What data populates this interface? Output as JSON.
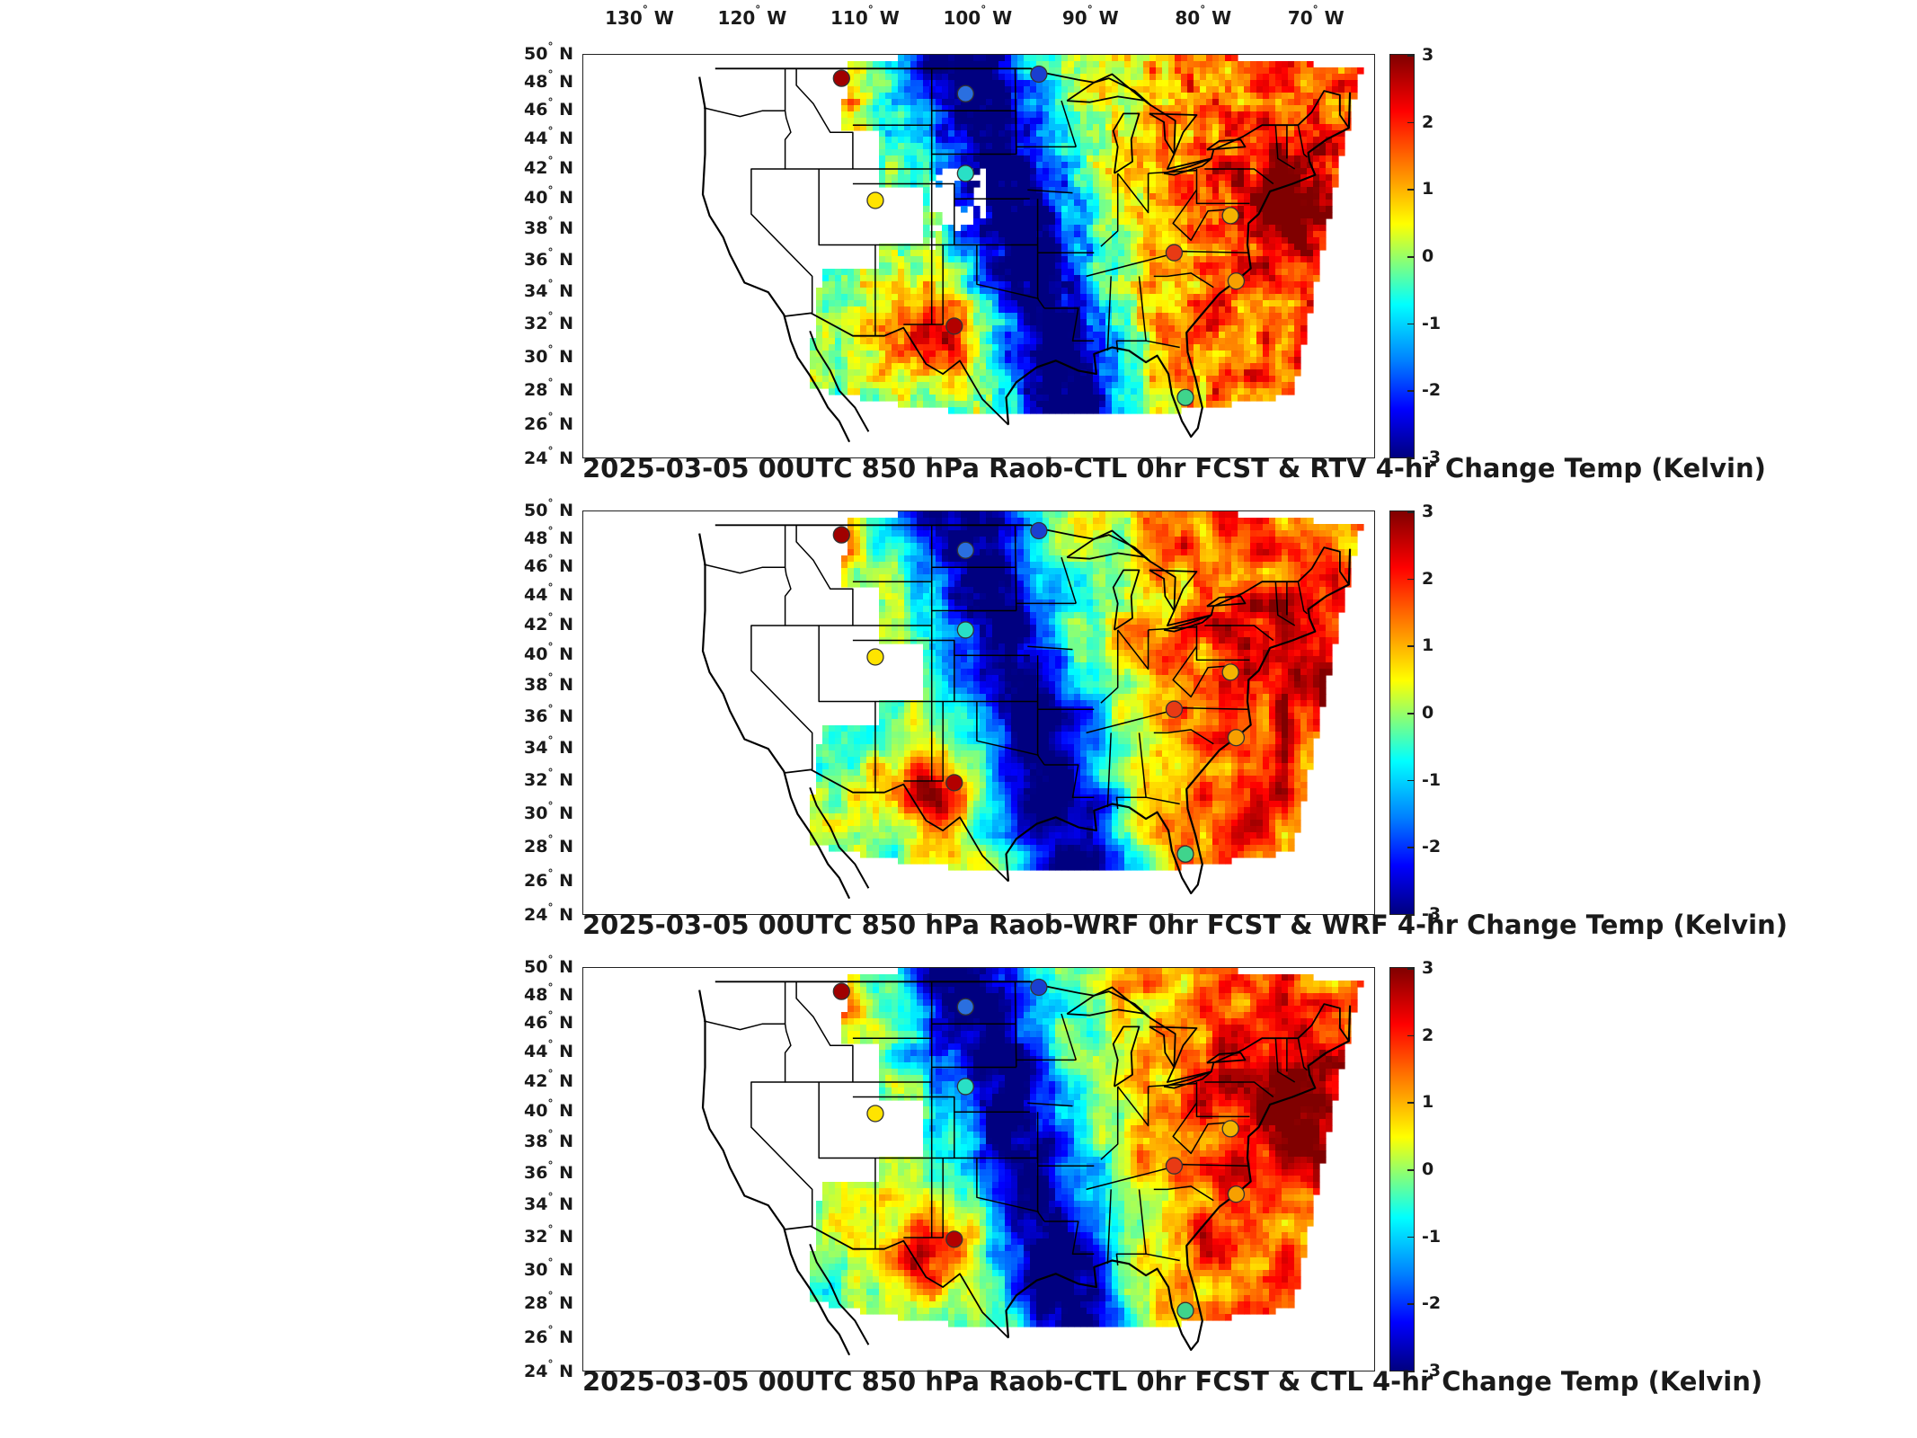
{
  "lon_ticks": [
    "130",
    "120",
    "110",
    "100",
    "90",
    "80",
    "70"
  ],
  "lon_suffix": "W",
  "lat_ticks": [
    "50",
    "48",
    "46",
    "44",
    "42",
    "40",
    "38",
    "36",
    "34",
    "32",
    "30",
    "28",
    "26",
    "24"
  ],
  "lat_suffix": "N",
  "colorbar": {
    "ticks": [
      "3",
      "2",
      "1",
      "0",
      "-1",
      "-2",
      "-3"
    ],
    "range": [
      -3,
      3
    ],
    "colormap": "jet"
  },
  "panels": [
    {
      "title": "2025-03-05 00UTC 850 hPa Raob-CTL 0hr FCST & RTV 4-hr Change Temp (Kelvin)"
    },
    {
      "title": "2025-03-05 00UTC 850 hPa Raob-WRF 0hr FCST & WRF 4-hr Change Temp (Kelvin)"
    },
    {
      "title": "2025-03-05 00UTC 850 hPa Raob-CTL 0hr FCST & CTL 4-hr Change Temp (Kelvin)"
    }
  ],
  "stations": [
    {
      "lon": -112,
      "lat": 48.3,
      "color": "#a00000"
    },
    {
      "lon": -101,
      "lat": 47.2,
      "color": "#2a6fe0"
    },
    {
      "lon": -94.5,
      "lat": 48.6,
      "color": "#1a3fd0"
    },
    {
      "lon": -101,
      "lat": 41.7,
      "color": "#29e0c6"
    },
    {
      "lon": -109,
      "lat": 39.9,
      "color": "#ffe400"
    },
    {
      "lon": -102,
      "lat": 31.9,
      "color": "#b30000"
    },
    {
      "lon": -82.5,
      "lat": 36.5,
      "color": "#e83a14"
    },
    {
      "lon": -77.5,
      "lat": 38.9,
      "color": "#f4b400"
    },
    {
      "lon": -77,
      "lat": 34.7,
      "color": "#f7a000"
    },
    {
      "lon": -81.5,
      "lat": 27.6,
      "color": "#3fd48c"
    }
  ],
  "colors": {
    "frame": "#222222",
    "coast": "#000000"
  }
}
